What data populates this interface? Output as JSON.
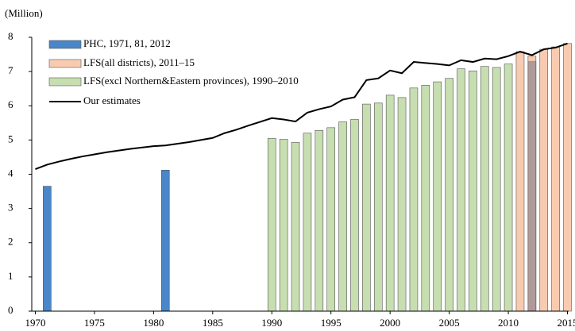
{
  "chart_data": {
    "type": "bar",
    "y_label": "(Million)",
    "xlim": [
      1969.7,
      2015.1
    ],
    "xticks": [
      1970,
      1975,
      1980,
      1985,
      1990,
      1995,
      2000,
      2005,
      2010,
      2015
    ],
    "ylim": [
      0,
      8
    ],
    "yticks": [
      0,
      1,
      2,
      3,
      4,
      5,
      6,
      7,
      8
    ],
    "legend": "upper left",
    "series": [
      {
        "name": "PHC, 1971, 81, 2012",
        "type": "bar",
        "color": "#4a86c8",
        "x": [
          1971,
          1981,
          2012
        ],
        "values": [
          3.65,
          4.12,
          7.3
        ]
      },
      {
        "name": "LFS(all districts), 2011–15",
        "type": "bar",
        "color": "#f4a97c",
        "x": [
          2011,
          2012,
          2013,
          2014,
          2015
        ],
        "values": [
          7.58,
          7.45,
          7.65,
          7.72,
          7.82
        ]
      },
      {
        "name": "LFS(excl Northern&Eastern provinces), 1990–2010",
        "type": "bar",
        "color": "#c6deb0",
        "x": [
          1990,
          1991,
          1992,
          1993,
          1994,
          1995,
          1996,
          1997,
          1998,
          1999,
          2000,
          2001,
          2002,
          2003,
          2004,
          2005,
          2006,
          2007,
          2008,
          2009,
          2010
        ],
        "values": [
          5.05,
          5.02,
          4.93,
          5.2,
          5.28,
          5.36,
          5.53,
          5.6,
          6.05,
          6.08,
          6.31,
          6.24,
          6.52,
          6.6,
          6.7,
          6.8,
          7.08,
          7.02,
          7.15,
          7.12,
          7.22
        ]
      },
      {
        "name": "Our estimates",
        "type": "line",
        "color": "#000000",
        "x": [
          1970,
          1971,
          1972,
          1973,
          1974,
          1975,
          1976,
          1977,
          1978,
          1979,
          1980,
          1981,
          1982,
          1983,
          1984,
          1985,
          1986,
          1987,
          1988,
          1989,
          1990,
          1991,
          1992,
          1993,
          1994,
          1995,
          1996,
          1997,
          1998,
          1999,
          2000,
          2001,
          2002,
          2003,
          2004,
          2005,
          2006,
          2007,
          2008,
          2009,
          2010,
          2011,
          2012,
          2013,
          2014,
          2015
        ],
        "values": [
          4.15,
          4.28,
          4.37,
          4.45,
          4.52,
          4.58,
          4.64,
          4.69,
          4.74,
          4.78,
          4.82,
          4.84,
          4.89,
          4.94,
          5.0,
          5.06,
          5.2,
          5.3,
          5.42,
          5.53,
          5.64,
          5.6,
          5.54,
          5.8,
          5.9,
          5.98,
          6.18,
          6.25,
          6.75,
          6.8,
          7.03,
          6.95,
          7.28,
          7.25,
          7.22,
          7.18,
          7.33,
          7.28,
          7.38,
          7.36,
          7.45,
          7.58,
          7.48,
          7.65,
          7.7,
          7.82
        ]
      }
    ]
  }
}
